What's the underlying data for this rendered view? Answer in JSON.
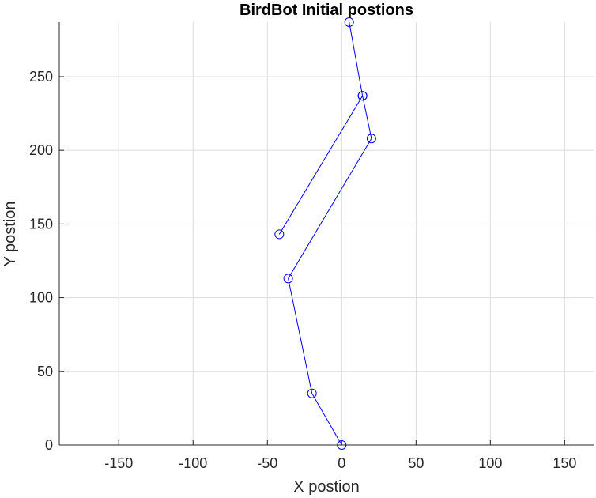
{
  "chart_data": {
    "type": "line",
    "title": "BirdBot Initial postions",
    "xlabel": "X postion",
    "ylabel": "Y postion",
    "xlim": [
      -190,
      170
    ],
    "ylim": [
      0,
      287
    ],
    "xticks": [
      -150,
      -100,
      -50,
      0,
      50,
      100,
      150
    ],
    "yticks": [
      0,
      50,
      100,
      150,
      200,
      250
    ],
    "grid": true,
    "legend": false,
    "marker": "circle",
    "color": "#0000ff",
    "points": [
      {
        "x": 0,
        "y": 0
      },
      {
        "x": -20,
        "y": 35
      },
      {
        "x": -36,
        "y": 113
      },
      {
        "x": 20,
        "y": 208
      },
      {
        "x": 14,
        "y": 237
      },
      {
        "x": -42,
        "y": 143
      },
      {
        "x": 14,
        "y": 237
      },
      {
        "x": 5,
        "y": 287
      }
    ]
  }
}
